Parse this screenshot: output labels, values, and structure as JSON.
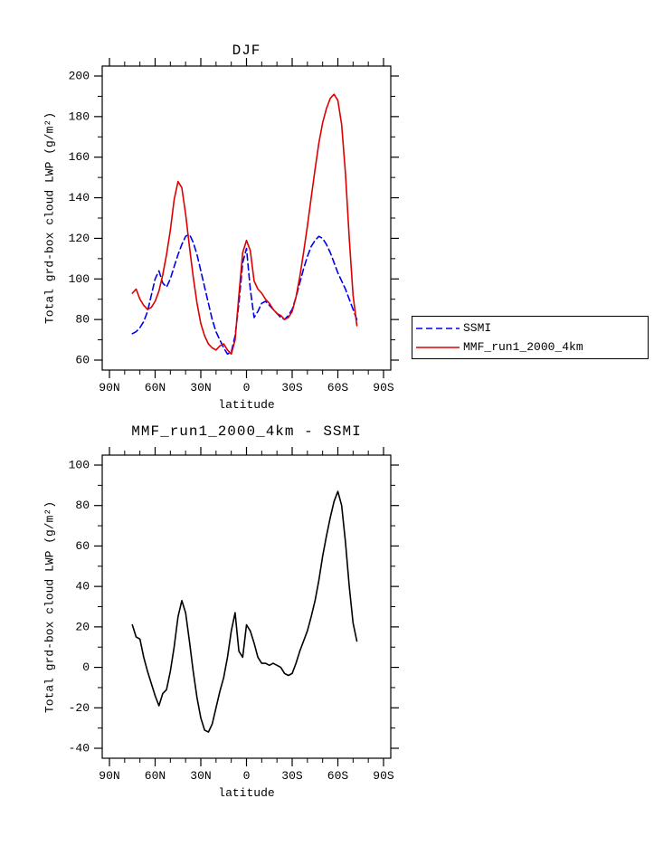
{
  "page": {
    "background": "#ffffff"
  },
  "chart_data": [
    {
      "type": "line",
      "title": "DJF",
      "xlabel": "latitude",
      "ylabel": "Total grd-box cloud LWP (g/m²)",
      "xlim": [
        90,
        -90
      ],
      "ylim": [
        60,
        200
      ],
      "ytick_step": 20,
      "yminor": 10,
      "xminor": 10,
      "yticks": [
        60,
        80,
        100,
        120,
        140,
        160,
        180,
        200
      ],
      "xticks": [
        {
          "value": 90,
          "label": "90N"
        },
        {
          "value": 60,
          "label": "60N"
        },
        {
          "value": 30,
          "label": "30N"
        },
        {
          "value": 0,
          "label": "0"
        },
        {
          "value": -30,
          "label": "30S"
        },
        {
          "value": -60,
          "label": "60S"
        },
        {
          "value": -90,
          "label": "90S"
        }
      ],
      "legend_position": "right-bottom-outside",
      "series": [
        {
          "name": "SSMI",
          "color": "#0000ee",
          "style": "dashed",
          "x": [
            75,
            72.5,
            70,
            67.5,
            65,
            62.5,
            60,
            57.5,
            55,
            52.5,
            50,
            47.5,
            45,
            42.5,
            40,
            37.5,
            35,
            32.5,
            30,
            27.5,
            25,
            22.5,
            20,
            17.5,
            15,
            12.5,
            10,
            7.5,
            5,
            2.5,
            0,
            -2.5,
            -5,
            -7.5,
            -10,
            -12.5,
            -15,
            -17.5,
            -20,
            -22.5,
            -25,
            -27.5,
            -30,
            -32.5,
            -35,
            -37.5,
            -40,
            -42.5,
            -45,
            -47.5,
            -50,
            -52.5,
            -55,
            -57.5,
            -60,
            -62.5,
            -65,
            -67.5,
            -70,
            -72.5
          ],
          "y": [
            73,
            74,
            76,
            79,
            84,
            92,
            100,
            104,
            98,
            96,
            100,
            106,
            112,
            117,
            121,
            122,
            118,
            112,
            104,
            96,
            88,
            80,
            74,
            70,
            66,
            63,
            64,
            72,
            88,
            108,
            115,
            95,
            81,
            84,
            88,
            89,
            87,
            85,
            83,
            81,
            80,
            82,
            85,
            91,
            98,
            105,
            111,
            116,
            119,
            121,
            120,
            117,
            113,
            108,
            103,
            99,
            95,
            90,
            85,
            80
          ]
        },
        {
          "name": "MMF_run1_2000_4km",
          "color": "#dd0000",
          "style": "solid",
          "x": [
            75,
            72.5,
            70,
            67.5,
            65,
            62.5,
            60,
            57.5,
            55,
            52.5,
            50,
            47.5,
            45,
            42.5,
            40,
            37.5,
            35,
            32.5,
            30,
            27.5,
            25,
            22.5,
            20,
            17.5,
            15,
            12.5,
            10,
            7.5,
            5,
            2.5,
            0,
            -2.5,
            -5,
            -7.5,
            -10,
            -12.5,
            -15,
            -17.5,
            -20,
            -22.5,
            -25,
            -27.5,
            -30,
            -32.5,
            -35,
            -37.5,
            -40,
            -42.5,
            -45,
            -47.5,
            -50,
            -52.5,
            -55,
            -57.5,
            -60,
            -62.5,
            -65,
            -67.5,
            -70,
            -72.5
          ],
          "y": [
            93,
            95,
            90,
            87,
            85,
            86,
            89,
            94,
            102,
            112,
            124,
            139,
            148,
            145,
            132,
            116,
            101,
            88,
            78,
            72,
            68,
            66,
            65,
            67,
            68,
            65,
            63,
            70,
            92,
            113,
            119,
            114,
            99,
            95,
            93,
            90,
            88,
            85,
            83,
            82,
            80,
            81,
            84,
            91,
            101,
            113,
            126,
            140,
            154,
            167,
            177,
            184,
            189,
            191,
            188,
            176,
            152,
            120,
            92,
            77
          ]
        }
      ]
    },
    {
      "type": "line",
      "title": "MMF_run1_2000_4km - SSMI",
      "xlabel": "latitude",
      "ylabel": "Total grd-box cloud LWP (g/m²)",
      "xlim": [
        90,
        -90
      ],
      "ylim": [
        -40,
        100
      ],
      "ytick_step": 20,
      "yminor": 10,
      "xminor": 10,
      "yticks": [
        -40,
        -20,
        0,
        20,
        40,
        60,
        80,
        100
      ],
      "xticks": [
        {
          "value": 90,
          "label": "90N"
        },
        {
          "value": 60,
          "label": "60N"
        },
        {
          "value": 30,
          "label": "30N"
        },
        {
          "value": 0,
          "label": "0"
        },
        {
          "value": -30,
          "label": "30S"
        },
        {
          "value": -60,
          "label": "60S"
        },
        {
          "value": -90,
          "label": "90S"
        }
      ],
      "series": [
        {
          "name": "MMF_run1_2000_4km - SSMI",
          "color": "#000000",
          "style": "solid",
          "x": [
            75,
            72.5,
            70,
            67.5,
            65,
            62.5,
            60,
            57.5,
            55,
            52.5,
            50,
            47.5,
            45,
            42.5,
            40,
            37.5,
            35,
            32.5,
            30,
            27.5,
            25,
            22.5,
            20,
            17.5,
            15,
            12.5,
            10,
            7.5,
            5,
            2.5,
            0,
            -2.5,
            -5,
            -7.5,
            -10,
            -12.5,
            -15,
            -17.5,
            -20,
            -22.5,
            -25,
            -27.5,
            -30,
            -32.5,
            -35,
            -37.5,
            -40,
            -42.5,
            -45,
            -47.5,
            -50,
            -52.5,
            -55,
            -57.5,
            -60,
            -62.5,
            -65,
            -67.5,
            -70,
            -72.5
          ],
          "y": [
            21,
            15,
            14,
            5,
            -2,
            -8,
            -14,
            -19,
            -13,
            -11,
            -2,
            10,
            25,
            33,
            27,
            13,
            -2,
            -15,
            -25,
            -31,
            -32,
            -28,
            -20,
            -12,
            -5,
            5,
            18,
            27,
            8,
            5,
            21,
            18,
            12,
            5,
            2,
            2,
            1,
            2,
            1,
            0,
            -3,
            -4,
            -3,
            2,
            8,
            13,
            18,
            25,
            33,
            43,
            55,
            65,
            74,
            82,
            87,
            80,
            62,
            40,
            22,
            13
          ]
        }
      ]
    }
  ]
}
